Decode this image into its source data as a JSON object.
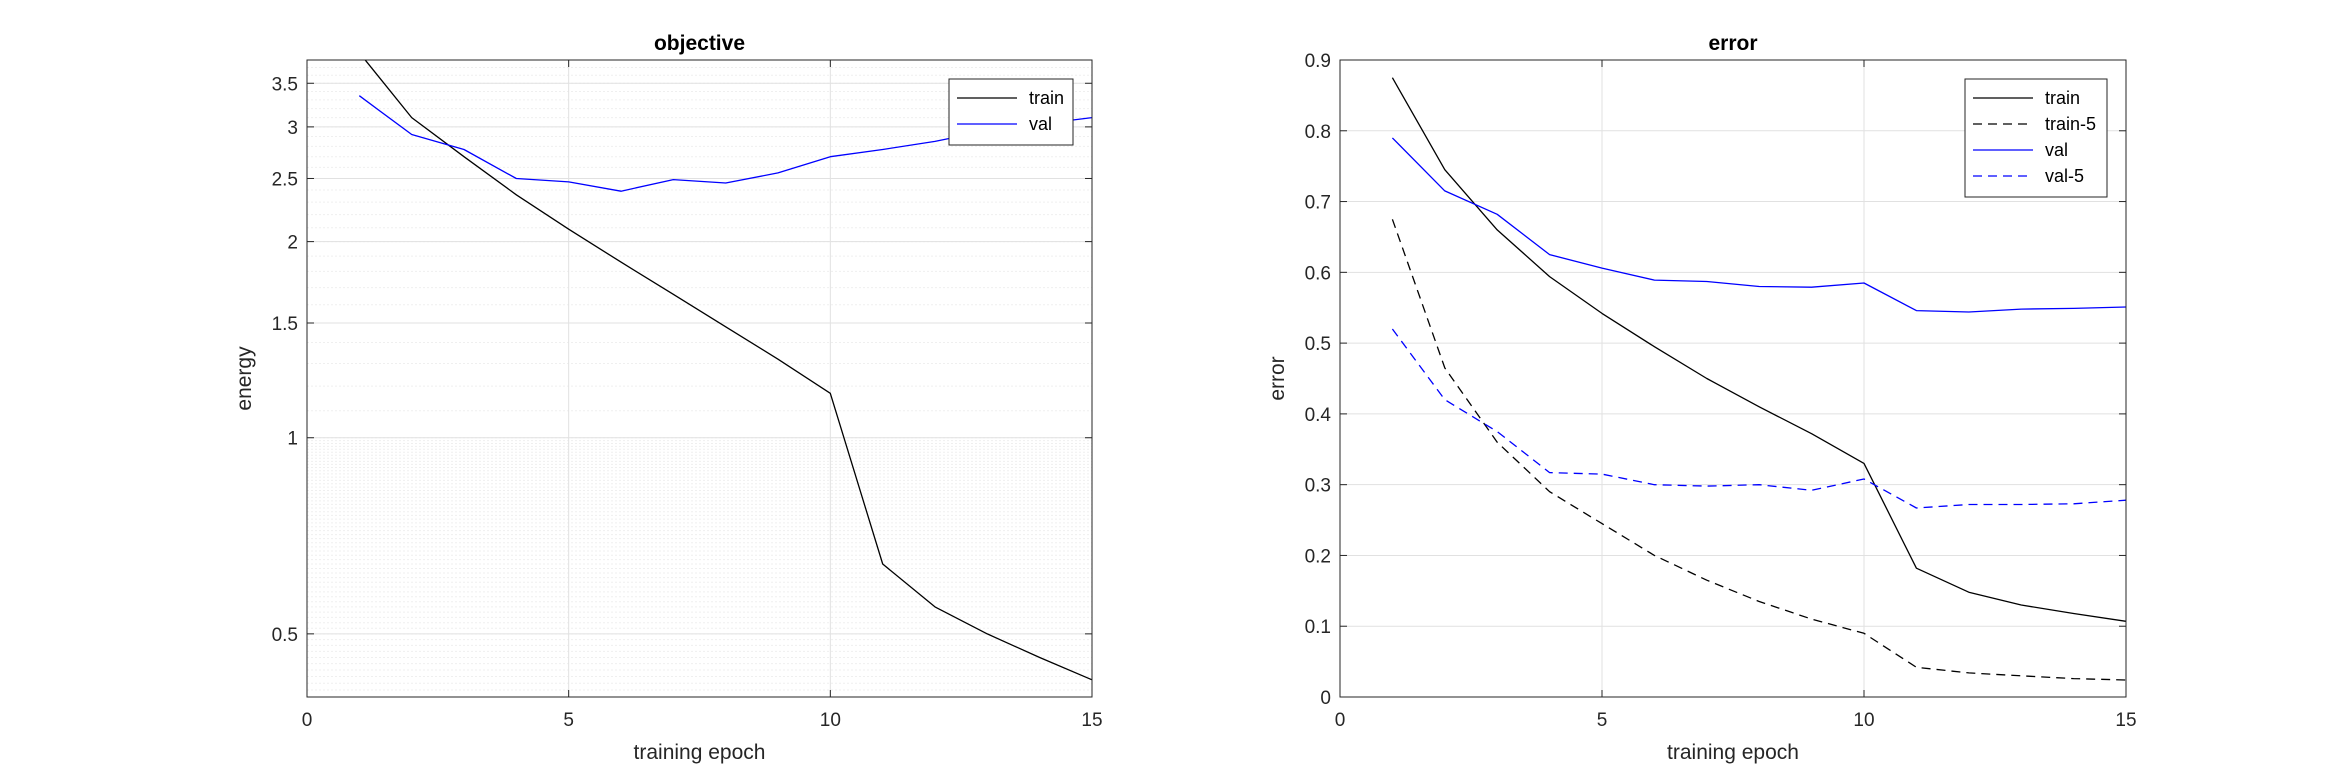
{
  "chart_data": [
    {
      "type": "line",
      "title": "objective",
      "xlabel": "training epoch",
      "ylabel": "energy",
      "xlim": [
        0,
        15
      ],
      "ylim": [
        0.4,
        3.8
      ],
      "yscale": "log",
      "xticks": [
        0,
        5,
        10,
        15
      ],
      "yticks": [
        0.5,
        1,
        1.5,
        2,
        2.5,
        3,
        3.5
      ],
      "ytick_labels": [
        "0.5",
        "1",
        "1.5",
        "2",
        "2.5",
        "3",
        "3.5"
      ],
      "grid": true,
      "minor_grid": true,
      "legend": "top-right",
      "x": [
        1,
        2,
        3,
        4,
        5,
        6,
        7,
        8,
        9,
        10,
        11,
        12,
        13,
        14,
        15
      ],
      "series": [
        {
          "name": "train",
          "color": "#000000",
          "dash": "solid",
          "values": [
            3.9,
            3.1,
            2.7,
            2.36,
            2.09,
            1.86,
            1.66,
            1.48,
            1.32,
            1.17,
            0.64,
            0.55,
            0.5,
            0.46,
            0.425
          ]
        },
        {
          "name": "val",
          "color": "#0000ff",
          "dash": "solid",
          "values": [
            3.35,
            2.92,
            2.77,
            2.5,
            2.47,
            2.39,
            2.49,
            2.46,
            2.55,
            2.7,
            2.77,
            2.85,
            2.96,
            3.03,
            3.1
          ]
        }
      ]
    },
    {
      "type": "line",
      "title": "error",
      "xlabel": "training epoch",
      "ylabel": "error",
      "xlim": [
        0,
        15
      ],
      "ylim": [
        0,
        0.9
      ],
      "yscale": "linear",
      "xticks": [
        0,
        5,
        10,
        15
      ],
      "yticks": [
        0,
        0.1,
        0.2,
        0.3,
        0.4,
        0.5,
        0.6,
        0.7,
        0.8,
        0.9
      ],
      "ytick_labels": [
        "0",
        "0.1",
        "0.2",
        "0.3",
        "0.4",
        "0.5",
        "0.6",
        "0.7",
        "0.8",
        "0.9"
      ],
      "grid": true,
      "minor_grid": false,
      "legend": "top-right",
      "x": [
        1,
        2,
        3,
        4,
        5,
        6,
        7,
        8,
        9,
        10,
        11,
        12,
        13,
        14,
        15
      ],
      "series": [
        {
          "name": "train",
          "color": "#000000",
          "dash": "solid",
          "values": [
            0.875,
            0.745,
            0.66,
            0.594,
            0.542,
            0.495,
            0.45,
            0.41,
            0.372,
            0.33,
            0.182,
            0.148,
            0.13,
            0.118,
            0.107
          ]
        },
        {
          "name": "train-5",
          "color": "#000000",
          "dash": "dashed",
          "values": [
            0.675,
            0.465,
            0.36,
            0.29,
            0.245,
            0.2,
            0.165,
            0.135,
            0.11,
            0.09,
            0.042,
            0.034,
            0.03,
            0.026,
            0.024
          ]
        },
        {
          "name": "val",
          "color": "#0000ff",
          "dash": "solid",
          "values": [
            0.79,
            0.715,
            0.682,
            0.625,
            0.606,
            0.589,
            0.587,
            0.58,
            0.579,
            0.585,
            0.546,
            0.544,
            0.548,
            0.549,
            0.551
          ]
        },
        {
          "name": "val-5",
          "color": "#0000ff",
          "dash": "dashed",
          "values": [
            0.52,
            0.42,
            0.375,
            0.317,
            0.315,
            0.3,
            0.298,
            0.3,
            0.292,
            0.308,
            0.267,
            0.272,
            0.272,
            0.273,
            0.278
          ]
        }
      ]
    }
  ]
}
